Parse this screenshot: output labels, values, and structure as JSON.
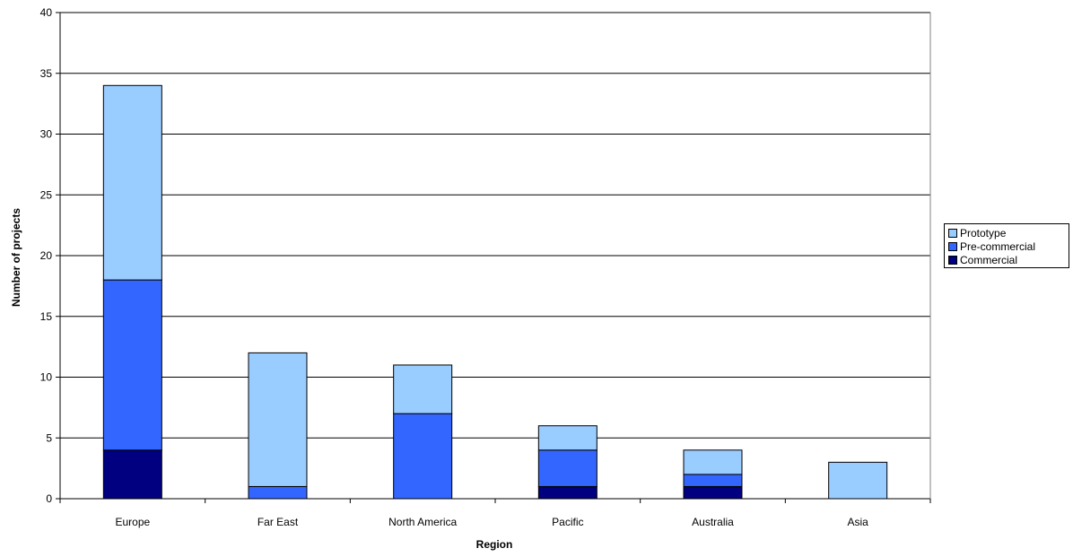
{
  "chart_data": {
    "type": "bar",
    "stacked": true,
    "categories": [
      "Europe",
      "Far East",
      "North America",
      "Pacific",
      "Australia",
      "Asia"
    ],
    "series": [
      {
        "name": "Commercial",
        "color": "#000080",
        "values": [
          4,
          0,
          0,
          1,
          1,
          0
        ]
      },
      {
        "name": "Pre-commercial",
        "color": "#3366ff",
        "values": [
          14,
          1,
          7,
          3,
          1,
          0
        ]
      },
      {
        "name": "Prototype",
        "color": "#99ccff",
        "values": [
          16,
          11,
          4,
          2,
          2,
          3
        ]
      }
    ],
    "legend_order": [
      "Prototype",
      "Pre-commercial",
      "Commercial"
    ],
    "xlabel": "Region",
    "ylabel": "Number of projects",
    "ylim": [
      0,
      40
    ],
    "yticks": [
      0,
      5,
      10,
      15,
      20,
      25,
      30,
      35,
      40
    ],
    "grid": true,
    "legend_position": "right"
  }
}
